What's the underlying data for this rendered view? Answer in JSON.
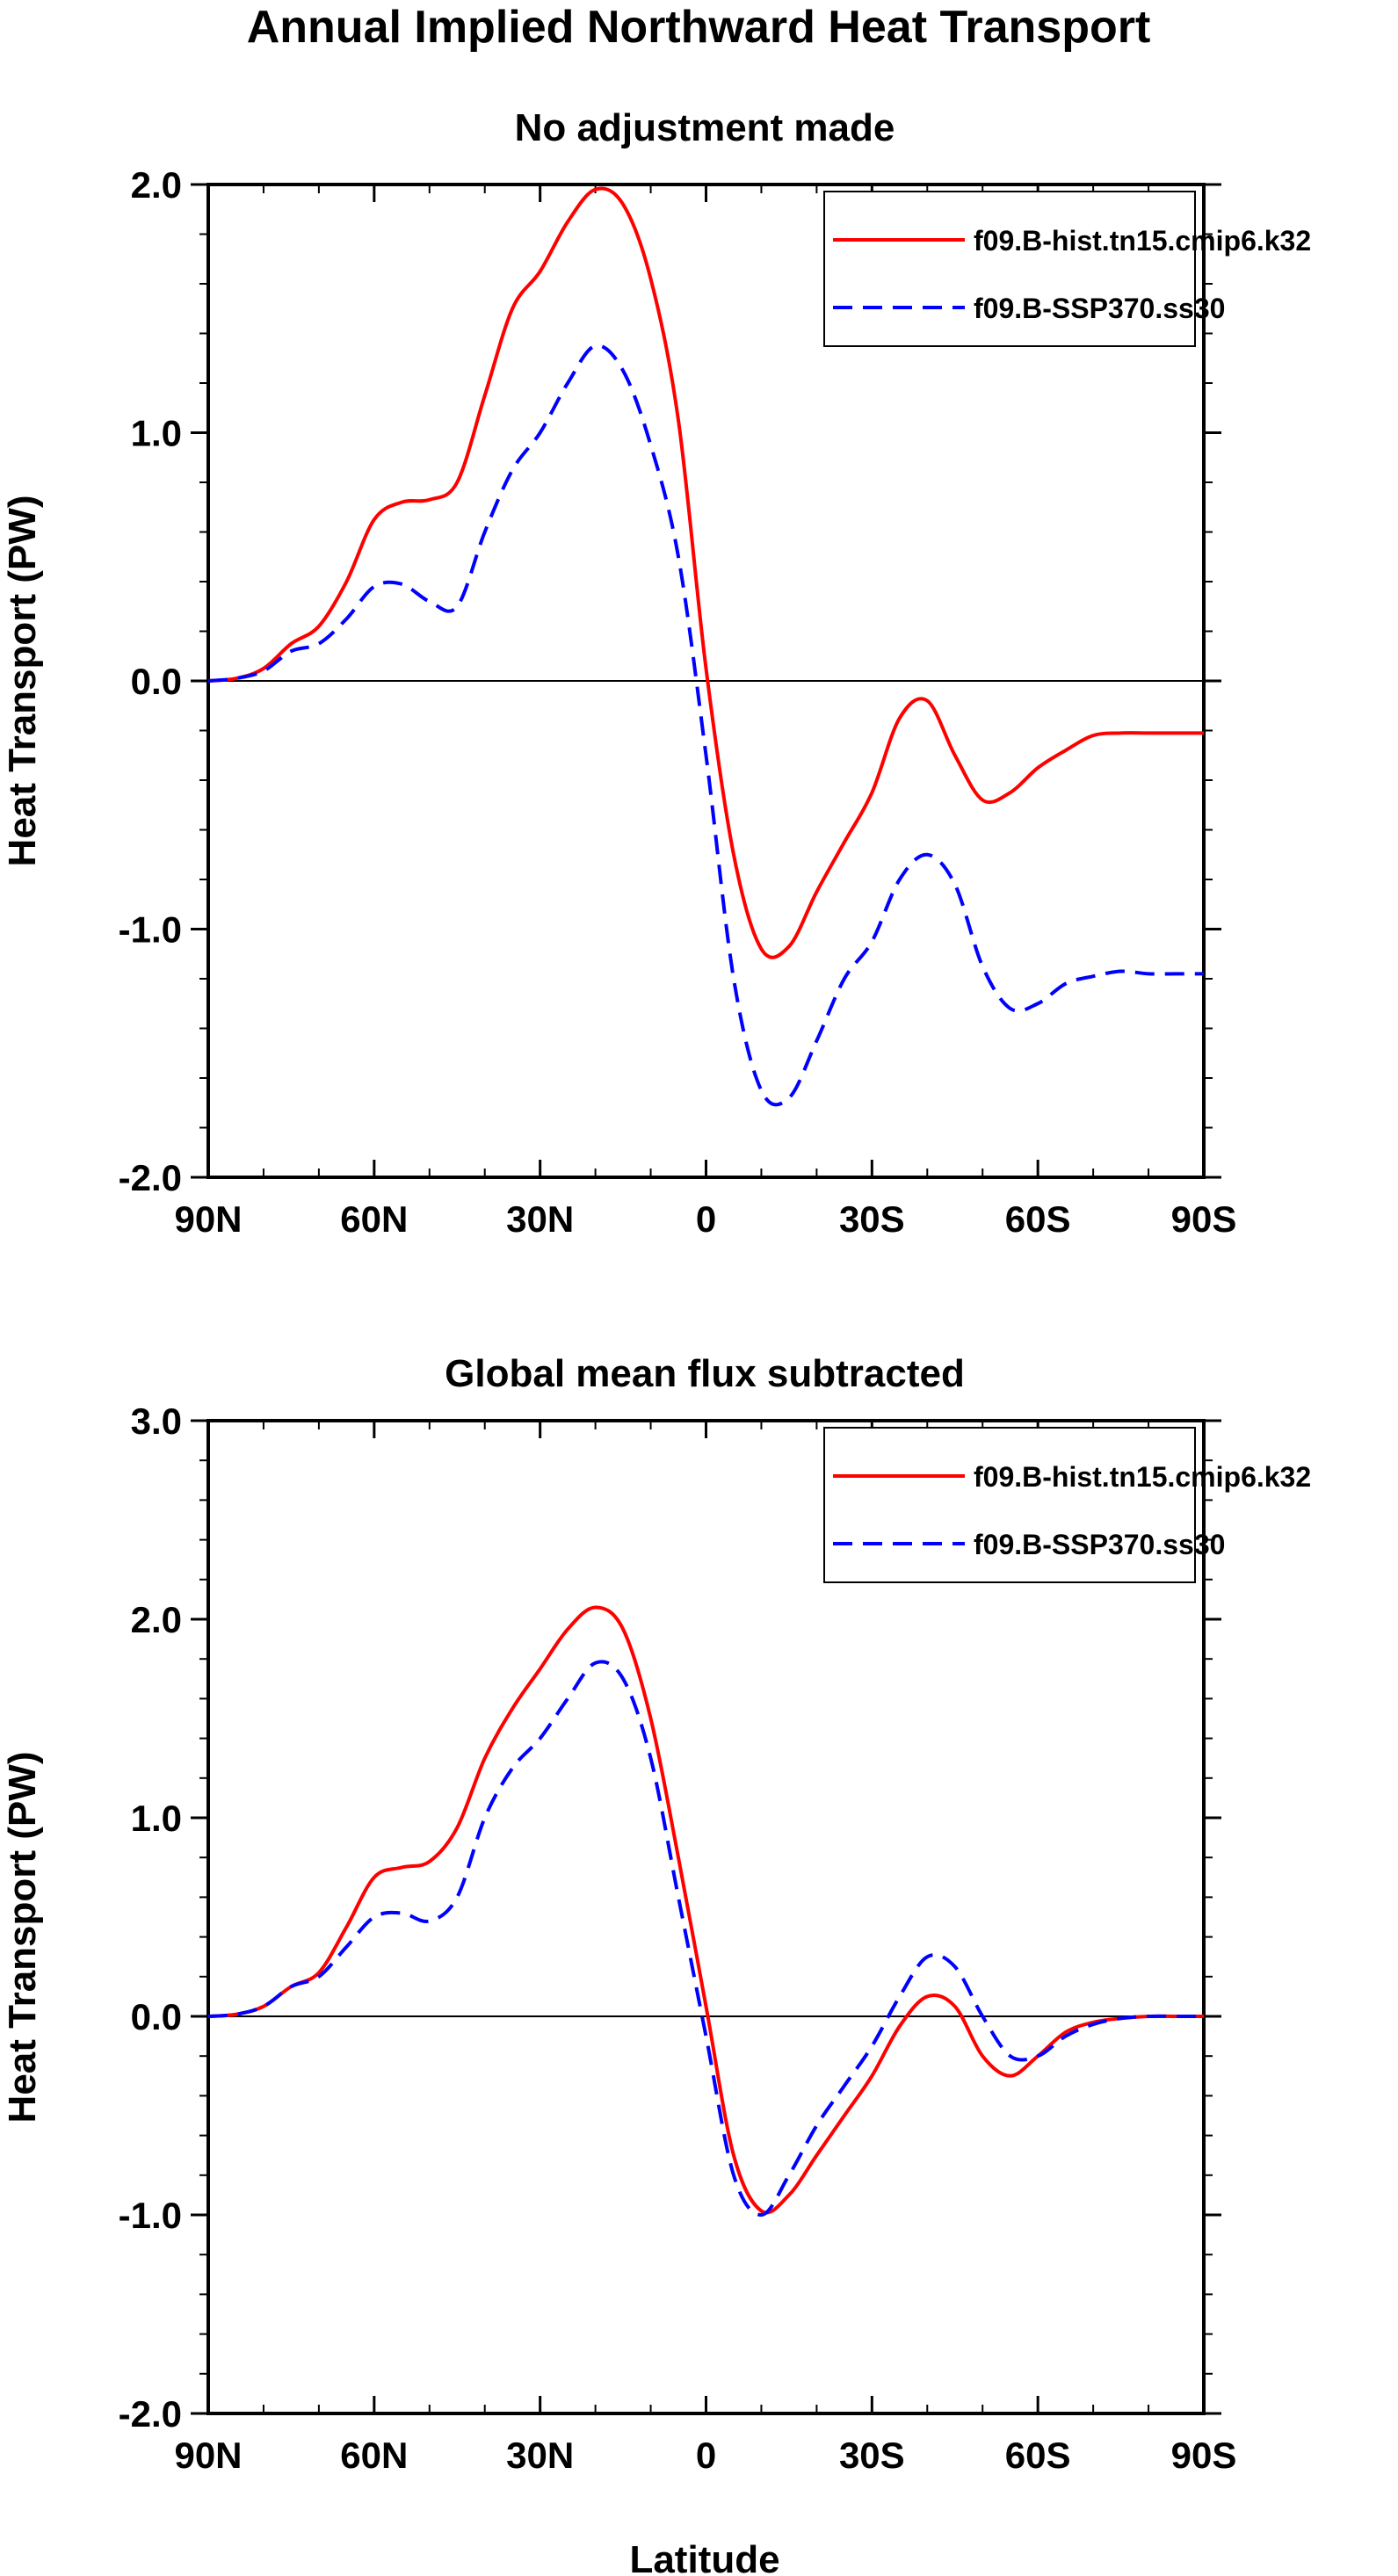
{
  "figure": {
    "title": "Annual Implied Northward Heat Transport",
    "xlabel": "Latitude"
  },
  "chart_data": [
    {
      "type": "line",
      "title": "No adjustment made",
      "xlabel": "",
      "ylabel": "Heat Transport (PW)",
      "xlim": [
        90,
        -90
      ],
      "ylim": [
        -2.0,
        2.0
      ],
      "x_ticks": [
        90,
        60,
        30,
        0,
        -30,
        -60,
        -90
      ],
      "x_tick_labels": [
        "90N",
        "60N",
        "30N",
        "0",
        "30S",
        "60S",
        "90S"
      ],
      "y_ticks": [
        2.0,
        1.0,
        0.0,
        -1.0,
        -2.0
      ],
      "y_tick_labels": [
        "2.0",
        "1.0",
        "0.0",
        "-1.0",
        "-2.0"
      ],
      "zero_line": true,
      "grid": false,
      "legend_position": "top-right",
      "series": [
        {
          "name": "f09.B-hist.tn15.cmip6.k32",
          "color": "#ff0000",
          "dash": "solid",
          "x": [
            90,
            85,
            80,
            75,
            70,
            65,
            60,
            55,
            50,
            45,
            40,
            35,
            30,
            25,
            20,
            15,
            10,
            5,
            0,
            -5,
            -10,
            -15,
            -20,
            -25,
            -30,
            -35,
            -40,
            -45,
            -50,
            -55,
            -60,
            -65,
            -70,
            -75,
            -80,
            -85,
            -90
          ],
          "values": [
            0.0,
            0.01,
            0.05,
            0.15,
            0.22,
            0.4,
            0.65,
            0.72,
            0.73,
            0.8,
            1.15,
            1.5,
            1.65,
            1.85,
            1.98,
            1.92,
            1.62,
            1.05,
            0.05,
            -0.7,
            -1.08,
            -1.07,
            -0.85,
            -0.65,
            -0.45,
            -0.15,
            -0.08,
            -0.3,
            -0.48,
            -0.45,
            -0.35,
            -0.28,
            -0.22,
            -0.21,
            -0.21,
            -0.21,
            -0.21
          ]
        },
        {
          "name": "f09.B-SSP370.ss30",
          "color": "#0000ff",
          "dash": "dashed",
          "x": [
            90,
            85,
            80,
            75,
            70,
            65,
            60,
            55,
            50,
            45,
            40,
            35,
            30,
            25,
            20,
            15,
            10,
            5,
            0,
            -5,
            -10,
            -15,
            -20,
            -25,
            -30,
            -35,
            -40,
            -45,
            -50,
            -55,
            -60,
            -65,
            -70,
            -75,
            -80,
            -85,
            -90
          ],
          "values": [
            0.0,
            0.01,
            0.04,
            0.12,
            0.15,
            0.25,
            0.38,
            0.39,
            0.32,
            0.3,
            0.6,
            0.85,
            1.0,
            1.2,
            1.35,
            1.25,
            0.95,
            0.5,
            -0.3,
            -1.2,
            -1.65,
            -1.68,
            -1.45,
            -1.2,
            -1.05,
            -0.8,
            -0.7,
            -0.82,
            -1.15,
            -1.32,
            -1.3,
            -1.22,
            -1.19,
            -1.17,
            -1.18,
            -1.18,
            -1.18
          ]
        }
      ]
    },
    {
      "type": "line",
      "title": "Global mean flux subtracted",
      "xlabel": "Latitude",
      "ylabel": "Heat Transport (PW)",
      "xlim": [
        90,
        -90
      ],
      "ylim": [
        -2.0,
        3.0
      ],
      "x_ticks": [
        90,
        60,
        30,
        0,
        -30,
        -60,
        -90
      ],
      "x_tick_labels": [
        "90N",
        "60N",
        "30N",
        "0",
        "30S",
        "60S",
        "90S"
      ],
      "y_ticks": [
        3.0,
        2.0,
        1.0,
        0.0,
        -1.0,
        -2.0
      ],
      "y_tick_labels": [
        "3.0",
        "2.0",
        "1.0",
        "0.0",
        "-1.0",
        "-2.0"
      ],
      "zero_line": true,
      "grid": false,
      "legend_position": "top-right",
      "series": [
        {
          "name": "f09.B-hist.tn15.cmip6.k32",
          "color": "#ff0000",
          "dash": "solid",
          "x": [
            90,
            85,
            80,
            75,
            70,
            65,
            60,
            55,
            50,
            45,
            40,
            35,
            30,
            25,
            20,
            15,
            10,
            5,
            0,
            -5,
            -10,
            -15,
            -20,
            -25,
            -30,
            -35,
            -40,
            -45,
            -50,
            -55,
            -60,
            -65,
            -70,
            -75,
            -80,
            -85,
            -90
          ],
          "values": [
            0.0,
            0.01,
            0.05,
            0.15,
            0.22,
            0.45,
            0.7,
            0.75,
            0.78,
            0.95,
            1.3,
            1.55,
            1.75,
            1.95,
            2.06,
            1.95,
            1.5,
            0.8,
            0.05,
            -0.7,
            -0.98,
            -0.9,
            -0.7,
            -0.5,
            -0.3,
            -0.05,
            0.1,
            0.05,
            -0.2,
            -0.3,
            -0.2,
            -0.08,
            -0.03,
            -0.01,
            0.0,
            0.0,
            0.0
          ]
        },
        {
          "name": "f09.B-SSP370.ss30",
          "color": "#0000ff",
          "dash": "dashed",
          "x": [
            90,
            85,
            80,
            75,
            70,
            65,
            60,
            55,
            50,
            45,
            40,
            35,
            30,
            25,
            20,
            15,
            10,
            5,
            0,
            -5,
            -10,
            -15,
            -20,
            -25,
            -30,
            -35,
            -40,
            -45,
            -50,
            -55,
            -60,
            -65,
            -70,
            -75,
            -80,
            -85,
            -90
          ],
          "values": [
            0.0,
            0.01,
            0.05,
            0.15,
            0.2,
            0.35,
            0.5,
            0.52,
            0.48,
            0.6,
            1.0,
            1.25,
            1.4,
            1.6,
            1.78,
            1.7,
            1.3,
            0.6,
            -0.1,
            -0.8,
            -1.0,
            -0.8,
            -0.55,
            -0.35,
            -0.15,
            0.1,
            0.3,
            0.25,
            0.0,
            -0.2,
            -0.2,
            -0.1,
            -0.04,
            -0.01,
            0.0,
            0.0,
            0.0
          ]
        }
      ]
    }
  ]
}
